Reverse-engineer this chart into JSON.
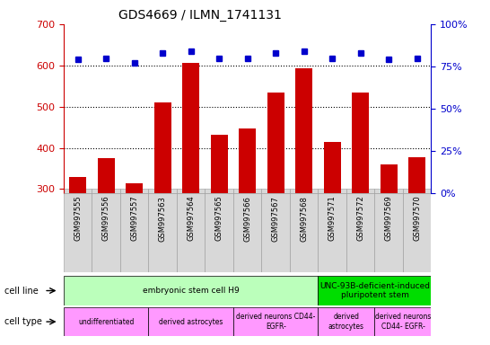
{
  "title": "GDS4669 / ILMN_1741131",
  "samples": [
    "GSM997555",
    "GSM997556",
    "GSM997557",
    "GSM997563",
    "GSM997564",
    "GSM997565",
    "GSM997566",
    "GSM997567",
    "GSM997568",
    "GSM997571",
    "GSM997572",
    "GSM997569",
    "GSM997570"
  ],
  "counts": [
    330,
    375,
    315,
    510,
    605,
    432,
    447,
    535,
    592,
    415,
    535,
    360,
    378
  ],
  "percentiles": [
    79,
    80,
    77,
    83,
    84,
    80,
    80,
    83,
    84,
    80,
    83,
    79,
    80
  ],
  "ylim_left": [
    290,
    700
  ],
  "ylim_right": [
    0,
    100
  ],
  "yticks_left": [
    300,
    400,
    500,
    600,
    700
  ],
  "yticks_right": [
    0,
    25,
    50,
    75,
    100
  ],
  "bar_color": "#cc0000",
  "dot_color": "#0000cc",
  "bar_bottom": 290,
  "grid_lines": [
    400,
    500,
    600
  ],
  "cell_line_groups": [
    {
      "label": "embryonic stem cell H9",
      "start": 0,
      "end": 9,
      "color": "#bbffbb"
    },
    {
      "label": "UNC-93B-deficient-induced\npluripotent stem",
      "start": 9,
      "end": 13,
      "color": "#00dd00"
    }
  ],
  "cell_type_groups": [
    {
      "label": "undifferentiated",
      "start": 0,
      "end": 3,
      "color": "#ff99ff"
    },
    {
      "label": "derived astrocytes",
      "start": 3,
      "end": 6,
      "color": "#ff99ff"
    },
    {
      "label": "derived neurons CD44-\nEGFR-",
      "start": 6,
      "end": 9,
      "color": "#ff99ff"
    },
    {
      "label": "derived\nastrocytes",
      "start": 9,
      "end": 11,
      "color": "#ff99ff"
    },
    {
      "label": "derived neurons\nCD44- EGFR-",
      "start": 11,
      "end": 13,
      "color": "#ff99ff"
    }
  ],
  "bg_color": "#d8d8d8",
  "left_tick_color": "#cc0000",
  "right_tick_color": "#0000cc",
  "figsize": [
    5.46,
    3.84
  ],
  "dpi": 100
}
